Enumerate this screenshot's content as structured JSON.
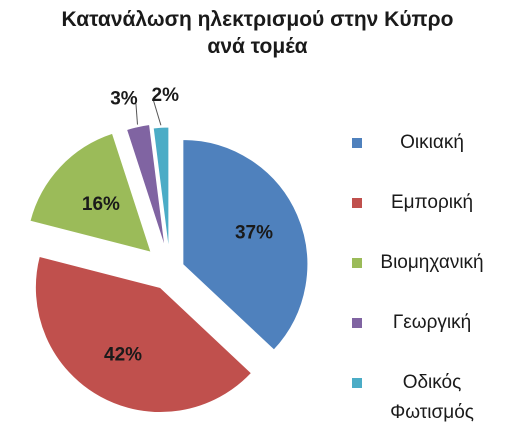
{
  "chart_data": {
    "type": "pie",
    "title_lines": [
      "Κατανάλωση ηλεκτρισμού στην Κύπρο",
      "ανά τομέα"
    ],
    "slices": [
      {
        "label": "Οικιακή",
        "value": 37,
        "display": "37%",
        "color": "#4f81bd"
      },
      {
        "label": "Εμπορική",
        "value": 42,
        "display": "42%",
        "color": "#c0504d"
      },
      {
        "label": "Βιομηχανική",
        "value": 16,
        "display": "16%",
        "color": "#9bbb59"
      },
      {
        "label": "Γεωργική",
        "value": 3,
        "display": "3%",
        "color": "#8064a2"
      },
      {
        "label": "Οδικός Φωτισμός",
        "value": 2,
        "display": "2%",
        "color": "#4bacc6"
      }
    ],
    "legend_labels": [
      "Οικιακή",
      "Εμπορική",
      "Βιομηχανική",
      "Γεωργική",
      "Οδικός\nΦωτισμός"
    ],
    "legend_position": "right",
    "exploded": true,
    "data_labels": true
  }
}
